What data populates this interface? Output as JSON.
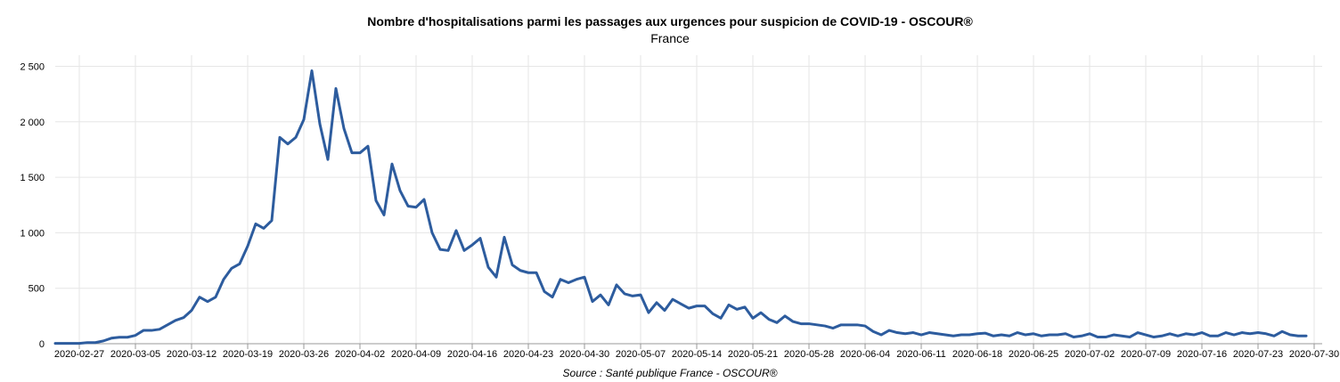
{
  "chart_data": {
    "type": "line",
    "title": "Nombre d'hospitalisations parmi les passages aux urgences pour suspicion de COVID-19 - OSCOUR®",
    "subtitle": "France",
    "source": "Source : Santé publique France - OSCOUR®",
    "xlabel": "",
    "ylabel": "",
    "ylim": [
      0,
      2600
    ],
    "yticks": [
      0,
      500,
      1000,
      1500,
      2000,
      2500
    ],
    "ytick_labels": [
      "0",
      "500",
      "1 000",
      "1 500",
      "2 000",
      "2 500"
    ],
    "xticks": [
      "2020-02-27",
      "2020-03-05",
      "2020-03-12",
      "2020-03-19",
      "2020-03-26",
      "2020-04-02",
      "2020-04-09",
      "2020-04-16",
      "2020-04-23",
      "2020-04-30",
      "2020-05-07",
      "2020-05-14",
      "2020-05-21",
      "2020-05-28",
      "2020-06-04",
      "2020-06-11",
      "2020-06-18",
      "2020-06-25",
      "2020-07-02",
      "2020-07-09",
      "2020-07-16",
      "2020-07-23",
      "2020-07-30"
    ],
    "grid": true,
    "line_color": "#2d5c9e",
    "series": [
      {
        "x_start": "2020-02-24",
        "x_end": "2020-07-31",
        "values": [
          3,
          3,
          3,
          3,
          10,
          10,
          25,
          50,
          58,
          58,
          75,
          120,
          120,
          130,
          170,
          210,
          235,
          300,
          420,
          380,
          420,
          580,
          680,
          720,
          880,
          1080,
          1040,
          1110,
          1860,
          1800,
          1860,
          2020,
          2460,
          1980,
          1660,
          2300,
          1940,
          1720,
          1720,
          1780,
          1290,
          1160,
          1620,
          1380,
          1240,
          1230,
          1300,
          1000,
          850,
          840,
          1020,
          840,
          890,
          950,
          690,
          600,
          960,
          710,
          660,
          640,
          640,
          470,
          420,
          580,
          550,
          580,
          600,
          380,
          440,
          350,
          530,
          450,
          430,
          440,
          280,
          370,
          300,
          400,
          360,
          320,
          340,
          340,
          270,
          230,
          350,
          310,
          330,
          230,
          280,
          220,
          190,
          250,
          200,
          180,
          180,
          170,
          160,
          140,
          170,
          170,
          170,
          160,
          110,
          80,
          120,
          100,
          90,
          100,
          80,
          100,
          90,
          80,
          70,
          80,
          80,
          90,
          95,
          70,
          80,
          70,
          100,
          80,
          90,
          70,
          80,
          80,
          90,
          60,
          70,
          90,
          60,
          60,
          80,
          70,
          60,
          100,
          80,
          60,
          70,
          90,
          70,
          90,
          80,
          100,
          70,
          70,
          100,
          80,
          100,
          90,
          100,
          90,
          70,
          110,
          80,
          70,
          70
        ]
      }
    ]
  }
}
